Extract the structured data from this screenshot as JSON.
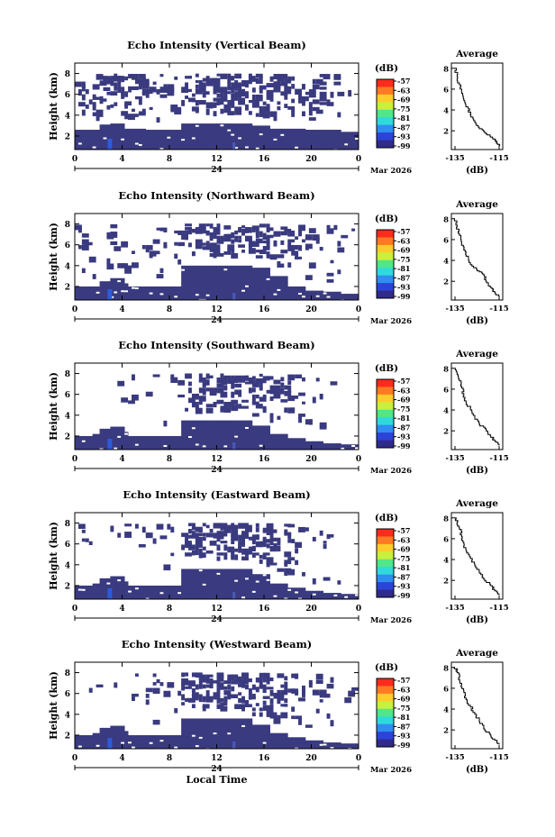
{
  "chart_data": [
    {
      "type": "heatmap",
      "title": "Echo Intensity (Vertical Beam)",
      "ylabel": "Height (km)",
      "yticks": [
        "8",
        "6",
        "4",
        "2"
      ],
      "xticks": [
        "0",
        "4",
        "8",
        "12",
        "16",
        "20",
        "0"
      ],
      "date_mid": "24",
      "date_right": "Mar 2026",
      "colorbar_unit": "(dB)",
      "colorbar_ticks": [
        "-57",
        "-63",
        "-69",
        "-75",
        "-81",
        "-87",
        "-93",
        "-99"
      ],
      "cloud_top": [
        2.6,
        2.6,
        2.7,
        2.7,
        2.6,
        2.6,
        3.2,
        3.2,
        3.2,
        3.2,
        3.0,
        2.7,
        2.7,
        2.6,
        2.6,
        2.4
      ],
      "aloft": [
        [
          0.4,
          0.5
        ],
        [
          0.5,
          0.45
        ],
        [
          0.6,
          0.35
        ],
        [
          0.5,
          0.3
        ],
        [
          0.4,
          0.2
        ],
        [
          0.3,
          0.2
        ],
        [
          0.6,
          0.45
        ],
        [
          0.7,
          0.5
        ],
        [
          0.8,
          0.55
        ],
        [
          0.7,
          0.5
        ],
        [
          0.75,
          0.5
        ],
        [
          0.6,
          0.45
        ],
        [
          0.5,
          0.4
        ],
        [
          0.4,
          0.35
        ],
        [
          0.3,
          0.2
        ],
        [
          0.2,
          0.1
        ]
      ],
      "avg_title": "Average",
      "avg_xlabel": "(dB)",
      "avg_xticks": [
        "-135",
        "-115"
      ],
      "avg_yticks": [
        "8",
        "6",
        "4",
        "2"
      ],
      "avg_profile": [
        [
          -115,
          0.5
        ],
        [
          -116,
          0.9
        ],
        [
          -118,
          1.3
        ],
        [
          -121,
          1.7
        ],
        [
          -124,
          2.2
        ],
        [
          -126,
          2.8
        ],
        [
          -128,
          3.5
        ],
        [
          -129,
          4.1
        ],
        [
          -131,
          4.9
        ],
        [
          -132,
          5.6
        ],
        [
          -133,
          6.4
        ],
        [
          -134,
          7.2
        ],
        [
          -135,
          8.0
        ]
      ]
    },
    {
      "type": "heatmap",
      "title": "Echo Intensity (Northward Beam)",
      "ylabel": "Height (km)",
      "yticks": [
        "8",
        "6",
        "4",
        "2"
      ],
      "xticks": [
        "0",
        "4",
        "8",
        "12",
        "16",
        "20",
        "0"
      ],
      "date_mid": "24",
      "date_right": "Mar 2026",
      "colorbar_unit": "(dB)",
      "colorbar_ticks": [
        "-57",
        "-63",
        "-69",
        "-75",
        "-81",
        "-87",
        "-93",
        "-99"
      ],
      "cloud_top": [
        2.0,
        2.0,
        2.3,
        2.0,
        2.0,
        2.0,
        4.0,
        4.0,
        4.0,
        4.0,
        3.8,
        3.0,
        2.0,
        1.6,
        1.5,
        1.3
      ],
      "aloft": [
        [
          0.2,
          0.3
        ],
        [
          0.3,
          0.3
        ],
        [
          0.3,
          0.3
        ],
        [
          0.3,
          0.2
        ],
        [
          0.4,
          0.2
        ],
        [
          0.4,
          0.2
        ],
        [
          0.4,
          0.2
        ],
        [
          0.6,
          0.3
        ],
        [
          0.7,
          0.4
        ],
        [
          0.6,
          0.4
        ],
        [
          0.6,
          0.3
        ],
        [
          0.5,
          0.3
        ],
        [
          0.5,
          0.3
        ],
        [
          0.4,
          0.2
        ],
        [
          0.3,
          0.2
        ],
        [
          0.2,
          0.1
        ]
      ],
      "avg_title": "Average",
      "avg_xlabel": "(dB)",
      "avg_xticks": [
        "-135",
        "-115"
      ],
      "avg_yticks": [
        "8",
        "6",
        "4",
        "2"
      ],
      "avg_profile": [
        [
          -115,
          0.5
        ],
        [
          -117,
          0.9
        ],
        [
          -119,
          1.4
        ],
        [
          -121,
          2.0
        ],
        [
          -122,
          2.6
        ],
        [
          -125,
          3.0
        ],
        [
          -128,
          3.6
        ],
        [
          -130,
          4.4
        ],
        [
          -131,
          5.0
        ],
        [
          -132,
          5.6
        ],
        [
          -133,
          6.4
        ],
        [
          -134,
          7.2
        ],
        [
          -135,
          8.0
        ]
      ]
    },
    {
      "type": "heatmap",
      "title": "Echo Intensity (Southward Beam)",
      "ylabel": "Height (km)",
      "yticks": [
        "8",
        "6",
        "4",
        "2"
      ],
      "xticks": [
        "0",
        "4",
        "8",
        "12",
        "16",
        "20",
        "0"
      ],
      "date_mid": "24",
      "date_right": "Mar 2026",
      "colorbar_unit": "(dB)",
      "colorbar_ticks": [
        "-57",
        "-63",
        "-69",
        "-75",
        "-81",
        "-87",
        "-93",
        "-99"
      ],
      "cloud_top": [
        2.0,
        2.2,
        2.4,
        2.0,
        2.0,
        2.0,
        3.5,
        3.5,
        3.5,
        3.5,
        3.0,
        2.2,
        1.8,
        1.5,
        1.3,
        1.2
      ],
      "aloft": [
        [
          0.05,
          0.1
        ],
        [
          0.05,
          0.1
        ],
        [
          0.1,
          0.1
        ],
        [
          0.1,
          0.1
        ],
        [
          0.1,
          0.1
        ],
        [
          0.2,
          0.2
        ],
        [
          0.4,
          0.3
        ],
        [
          0.6,
          0.4
        ],
        [
          0.7,
          0.4
        ],
        [
          0.6,
          0.4
        ],
        [
          0.6,
          0.4
        ],
        [
          0.5,
          0.3
        ],
        [
          0.4,
          0.3
        ],
        [
          0.3,
          0.2
        ],
        [
          0.2,
          0.15
        ],
        [
          0.1,
          0.1
        ]
      ],
      "avg_title": "Average",
      "avg_xlabel": "(dB)",
      "avg_xticks": [
        "-135",
        "-115"
      ],
      "avg_yticks": [
        "8",
        "6",
        "4",
        "2"
      ],
      "avg_profile": [
        [
          -115,
          0.6
        ],
        [
          -117,
          1.0
        ],
        [
          -119,
          1.5
        ],
        [
          -121,
          2.1
        ],
        [
          -124,
          2.6
        ],
        [
          -126,
          3.3
        ],
        [
          -128,
          4.0
        ],
        [
          -130,
          4.7
        ],
        [
          -131,
          5.4
        ],
        [
          -132,
          6.1
        ],
        [
          -133,
          6.8
        ],
        [
          -134,
          7.4
        ],
        [
          -135,
          8.0
        ]
      ]
    },
    {
      "type": "heatmap",
      "title": "Echo Intensity (Eastward Beam)",
      "ylabel": "Height (km)",
      "yticks": [
        "8",
        "6",
        "4",
        "2"
      ],
      "xticks": [
        "0",
        "4",
        "8",
        "12",
        "16",
        "20",
        "0"
      ],
      "date_mid": "24",
      "date_right": "Mar 2026",
      "colorbar_unit": "(dB)",
      "colorbar_ticks": [
        "-57",
        "-63",
        "-69",
        "-75",
        "-81",
        "-87",
        "-93",
        "-99"
      ],
      "cloud_top": [
        2.0,
        2.2,
        2.4,
        2.0,
        2.0,
        2.0,
        3.6,
        3.6,
        3.6,
        3.6,
        3.1,
        2.2,
        1.8,
        1.5,
        1.3,
        1.2
      ],
      "aloft": [
        [
          0.05,
          0.1
        ],
        [
          0.05,
          0.1
        ],
        [
          0.1,
          0.1
        ],
        [
          0.1,
          0.1
        ],
        [
          0.1,
          0.1
        ],
        [
          0.2,
          0.2
        ],
        [
          0.5,
          0.4
        ],
        [
          0.7,
          0.5
        ],
        [
          0.8,
          0.5
        ],
        [
          0.7,
          0.5
        ],
        [
          0.7,
          0.4
        ],
        [
          0.5,
          0.4
        ],
        [
          0.4,
          0.3
        ],
        [
          0.3,
          0.2
        ],
        [
          0.2,
          0.15
        ],
        [
          0.1,
          0.1
        ]
      ],
      "avg_title": "Average",
      "avg_xlabel": "(dB)",
      "avg_xticks": [
        "-135",
        "-115"
      ],
      "avg_yticks": [
        "8",
        "6",
        "4",
        "2"
      ],
      "avg_profile": [
        [
          -115,
          0.6
        ],
        [
          -117,
          1.0
        ],
        [
          -119,
          1.5
        ],
        [
          -122,
          2.1
        ],
        [
          -124,
          2.7
        ],
        [
          -126,
          3.4
        ],
        [
          -128,
          4.1
        ],
        [
          -130,
          4.8
        ],
        [
          -131,
          5.5
        ],
        [
          -132,
          6.2
        ],
        [
          -133,
          6.9
        ],
        [
          -134,
          7.5
        ],
        [
          -135,
          8.0
        ]
      ]
    },
    {
      "type": "heatmap",
      "title": "Echo Intensity (Westward Beam)",
      "ylabel": "Height (km)",
      "yticks": [
        "8",
        "6",
        "4",
        "2"
      ],
      "xticks": [
        "0",
        "4",
        "8",
        "12",
        "16",
        "20",
        "0"
      ],
      "date_mid": "24",
      "date_right": "Mar 2026",
      "colorbar_unit": "(dB)",
      "colorbar_ticks": [
        "-57",
        "-63",
        "-69",
        "-75",
        "-81",
        "-87",
        "-93",
        "-99"
      ],
      "xlabel": "Local Time",
      "cloud_top": [
        2.0,
        2.2,
        2.4,
        2.0,
        2.0,
        2.0,
        3.6,
        3.6,
        3.6,
        3.6,
        3.0,
        2.2,
        1.8,
        1.5,
        1.3,
        1.2
      ],
      "aloft": [
        [
          0.05,
          0.1
        ],
        [
          0.05,
          0.1
        ],
        [
          0.1,
          0.1
        ],
        [
          0.1,
          0.1
        ],
        [
          0.1,
          0.1
        ],
        [
          0.2,
          0.2
        ],
        [
          0.5,
          0.4
        ],
        [
          0.6,
          0.5
        ],
        [
          0.7,
          0.5
        ],
        [
          0.7,
          0.5
        ],
        [
          0.8,
          0.5
        ],
        [
          0.6,
          0.4
        ],
        [
          0.4,
          0.3
        ],
        [
          0.3,
          0.2
        ],
        [
          0.2,
          0.15
        ],
        [
          0.1,
          0.1
        ]
      ],
      "avg_title": "Average",
      "avg_xlabel": "(dB)",
      "avg_xticks": [
        "-135",
        "-115"
      ],
      "avg_yticks": [
        "8",
        "6",
        "4",
        "2"
      ],
      "avg_profile": [
        [
          -115,
          0.6
        ],
        [
          -117,
          1.0
        ],
        [
          -119,
          1.5
        ],
        [
          -122,
          2.1
        ],
        [
          -124,
          2.8
        ],
        [
          -126,
          3.5
        ],
        [
          -128,
          4.2
        ],
        [
          -130,
          4.9
        ],
        [
          -131,
          5.6
        ],
        [
          -132,
          6.3
        ],
        [
          -133,
          7.0
        ],
        [
          -134,
          7.5
        ],
        [
          -135,
          8.0
        ]
      ]
    }
  ],
  "colors": {
    "echo_fill": "#3a3a80",
    "echo_core": "#2d5bd9",
    "colorbar": [
      "#ff2a1e",
      "#ff7a22",
      "#ffcc2b",
      "#c8f03c",
      "#4fe78a",
      "#2fdadc",
      "#2f8ef0",
      "#2c43d8",
      "#302a8a"
    ]
  }
}
